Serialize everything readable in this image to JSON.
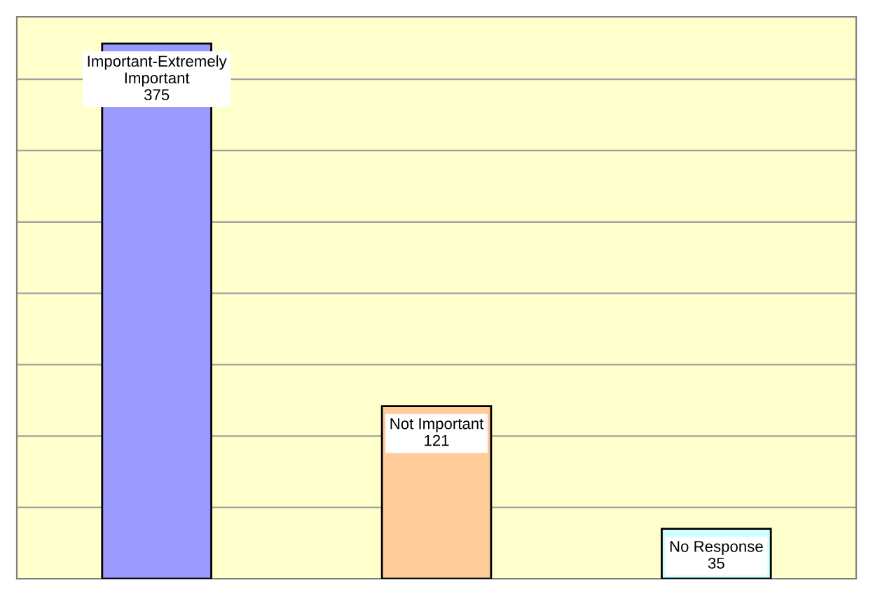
{
  "chart_data": {
    "type": "bar",
    "categories": [
      null,
      null,
      null
    ],
    "values": [
      375,
      121,
      35
    ],
    "value_labels": [
      "Important-Extremely\nImportant\n375",
      "Not Important\n121",
      "No Response\n35"
    ],
    "colors": [
      "#9999ff",
      "#ffcc99",
      "#ccffff"
    ],
    "grid": "y",
    "tick_labels": false
  }
}
